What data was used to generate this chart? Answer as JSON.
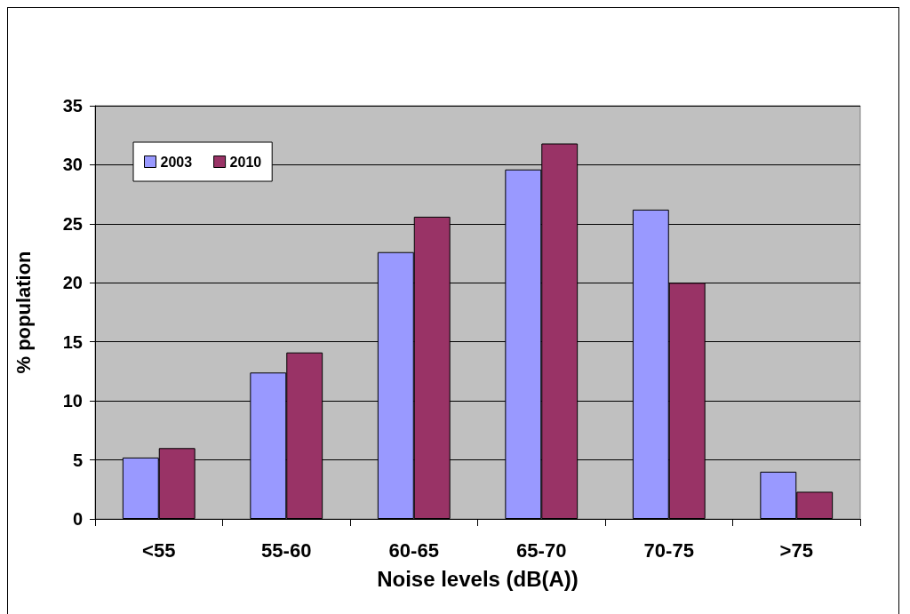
{
  "chart_data": {
    "type": "bar",
    "xlabel": "Noise levels (dB(A))",
    "ylabel": "% population",
    "categories": [
      "<55",
      "55-60",
      "60-65",
      "65-70",
      "70-75",
      ">75"
    ],
    "series": [
      {
        "name": "2003",
        "color": "#9999ff",
        "values": [
          5.2,
          12.4,
          22.6,
          29.6,
          26.2,
          4.0
        ]
      },
      {
        "name": "2010",
        "color": "#993366",
        "values": [
          6.0,
          14.1,
          25.6,
          31.8,
          20.0,
          2.3
        ]
      }
    ],
    "ylim": [
      0,
      35
    ],
    "yticks": [
      0,
      5,
      10,
      15,
      20,
      25,
      30,
      35
    ],
    "grid": "y",
    "legend": "top left"
  }
}
